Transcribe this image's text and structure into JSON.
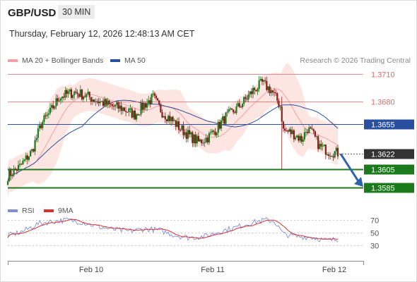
{
  "header": {
    "symbol": "GBP/USD",
    "timeframe": "30 MIN"
  },
  "timestamp": "Thursday, February 12, 2026 12:48:13 AM CET",
  "legend": {
    "bollinger_label": "MA 20 + Bollinger Bands",
    "ma50_label": "MA 50",
    "credit": "Research © 2026 Trading Central",
    "rsi_label": "RSI",
    "rsi_ma_label": "9MA"
  },
  "colors": {
    "resistance": "#e06666",
    "current": "#333333",
    "support": "#1b7a1b",
    "ma50": "#2a4f9f",
    "bollinger_fill": "#fde0dd",
    "ma20": "#f0a0a0",
    "candle_up": "#1e7a1e",
    "candle_down": "#8b1a1a",
    "rsi": "#7d8fd8",
    "rsi_ma": "#d93030",
    "arrow": "#2f63a8"
  },
  "chart_data": [
    {
      "type": "candlestick",
      "title": "GBP/USD 30 MIN",
      "x_ticks": [
        "Feb 10",
        "Feb 11",
        "Feb 12"
      ],
      "ylim": [
        1.357,
        1.372
      ],
      "grid": false,
      "legend_position": "top-left",
      "levels": [
        {
          "name": "resistance-2",
          "value": 1.371,
          "label": "1.3710",
          "kind": "resistance"
        },
        {
          "name": "resistance-1",
          "value": 1.368,
          "label": "1.3680",
          "kind": "resistance"
        },
        {
          "name": "ma50-level",
          "value": 1.3655,
          "label": "1.3655",
          "kind": "ma50"
        },
        {
          "name": "current-price",
          "value": 1.3622,
          "label": "1.3622",
          "kind": "current"
        },
        {
          "name": "support-1",
          "value": 1.3605,
          "label": "1.3605",
          "kind": "support"
        },
        {
          "name": "support-2",
          "value": 1.3585,
          "label": "1.3585",
          "kind": "support"
        }
      ],
      "anchors": [
        [
          0,
          1.3598
        ],
        [
          8,
          1.3608
        ],
        [
          16,
          1.3625
        ],
        [
          22,
          1.3655
        ],
        [
          28,
          1.3668
        ],
        [
          34,
          1.3685
        ],
        [
          44,
          1.369
        ],
        [
          52,
          1.3686
        ],
        [
          60,
          1.368
        ],
        [
          68,
          1.3675
        ],
        [
          76,
          1.3672
        ],
        [
          84,
          1.3665
        ],
        [
          90,
          1.3676
        ],
        [
          96,
          1.3684
        ],
        [
          102,
          1.3668
        ],
        [
          108,
          1.366
        ],
        [
          114,
          1.365
        ],
        [
          120,
          1.3642
        ],
        [
          126,
          1.3635
        ],
        [
          132,
          1.364
        ],
        [
          138,
          1.365
        ],
        [
          144,
          1.3663
        ],
        [
          150,
          1.367
        ],
        [
          156,
          1.368
        ],
        [
          162,
          1.3692
        ],
        [
          168,
          1.37
        ],
        [
          174,
          1.3692
        ],
        [
          180,
          1.3675
        ],
        [
          182,
          1.3648
        ],
        [
          188,
          1.3645
        ],
        [
          194,
          1.3638
        ],
        [
          198,
          1.365
        ],
        [
          202,
          1.3642
        ],
        [
          206,
          1.363
        ],
        [
          212,
          1.3625
        ],
        [
          218,
          1.3623
        ]
      ],
      "candle_count": 219,
      "series": [
        {
          "name": "MA 20 + Bollinger Bands",
          "values_source": "computed-from-anchors"
        },
        {
          "name": "MA 50",
          "values_source": "computed-from-anchors"
        }
      ],
      "forecast": {
        "from": 1.3622,
        "to": 1.3585
      }
    },
    {
      "type": "line",
      "title": "RSI",
      "ylim": [
        20,
        80
      ],
      "y_ticks": [
        "70",
        "50",
        "30"
      ],
      "series": [
        {
          "name": "RSI"
        },
        {
          "name": "9MA"
        }
      ],
      "anchors": [
        [
          0,
          45
        ],
        [
          10,
          52
        ],
        [
          20,
          64
        ],
        [
          30,
          68
        ],
        [
          40,
          70
        ],
        [
          50,
          66
        ],
        [
          60,
          59
        ],
        [
          70,
          55
        ],
        [
          80,
          52
        ],
        [
          90,
          56
        ],
        [
          100,
          54
        ],
        [
          110,
          46
        ],
        [
          120,
          42
        ],
        [
          130,
          44
        ],
        [
          140,
          52
        ],
        [
          150,
          58
        ],
        [
          160,
          65
        ],
        [
          170,
          70
        ],
        [
          176,
          68
        ],
        [
          182,
          48
        ],
        [
          190,
          44
        ],
        [
          200,
          43
        ],
        [
          210,
          38
        ],
        [
          218,
          39
        ]
      ]
    }
  ]
}
